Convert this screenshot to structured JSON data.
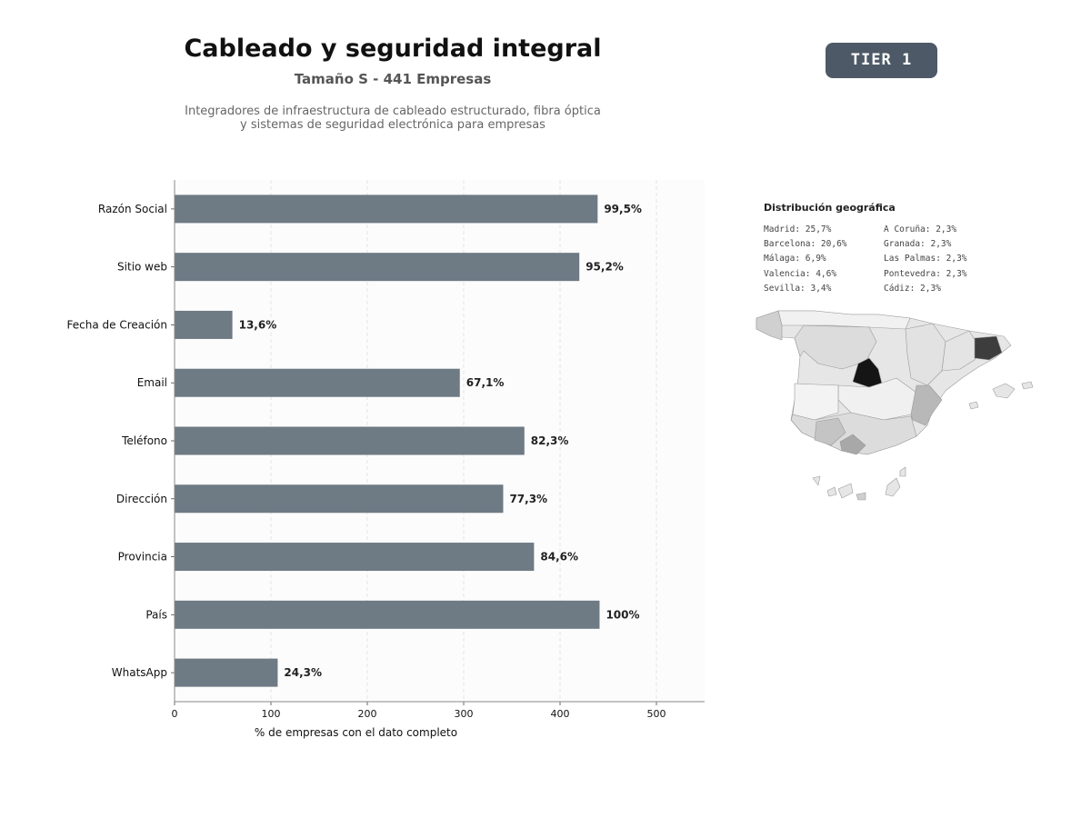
{
  "header": {
    "title": "Cableado y seguridad integral",
    "subtitle": "Tamaño S - 441 Empresas",
    "description_line1": "Integradores de infraestructura de cableado estructurado, fibra óptica",
    "description_line2": "y sistemas de seguridad electrónica para empresas",
    "tier_badge": "TIER 1"
  },
  "chart_data": {
    "type": "bar",
    "orientation": "horizontal",
    "categories": [
      "Razón Social",
      "Sitio web",
      "Fecha de Creación",
      "Email",
      "Teléfono",
      "Dirección",
      "Provincia",
      "País",
      "WhatsApp"
    ],
    "values": [
      439,
      420,
      60,
      296,
      363,
      341,
      373,
      441,
      107
    ],
    "labels": [
      "99,5%",
      "95,2%",
      "13,6%",
      "67,1%",
      "82,3%",
      "77,3%",
      "84,6%",
      "100%",
      "24,3%"
    ],
    "xlabel": "% de empresas con el dato completo",
    "xlim": [
      0,
      550
    ],
    "xticks": [
      0,
      100,
      200,
      300,
      400,
      500
    ],
    "grid": "vertical-dashed",
    "bar_color": "#6e7a84"
  },
  "geo": {
    "title": "Distribución geográfica",
    "left_column": [
      "Madrid: 25,7%",
      "Barcelona: 20,6%",
      "Málaga: 6,9%",
      "Valencia: 4,6%",
      "Sevilla: 3,4%"
    ],
    "right_column": [
      "A Coruña: 2,3%",
      "Granada: 2,3%",
      "Las Palmas: 2,3%",
      "Pontevedra: 2,3%",
      "Cádiz: 2,3%"
    ]
  }
}
